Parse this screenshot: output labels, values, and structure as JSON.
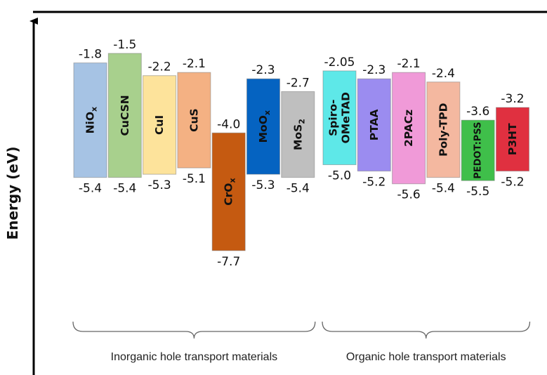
{
  "chart_data": {
    "type": "bar",
    "ylabel": "Energy (eV)",
    "groups": [
      {
        "label": "Inorganic hole transport materials",
        "materials": [
          {
            "name": "NiOx",
            "base": "NiO",
            "sub": "x",
            "top": -1.8,
            "bottom": -5.4,
            "top_label": "-1.8",
            "bottom_label": "-5.4",
            "color": "#a6c3e4"
          },
          {
            "name": "CuCSN",
            "base": "CuCSN",
            "sub": "",
            "top": -1.5,
            "bottom": -5.4,
            "top_label": "-1.5",
            "bottom_label": "-5.4",
            "color": "#a8d08d"
          },
          {
            "name": "CuI",
            "base": "CuI",
            "sub": "",
            "top": -2.2,
            "bottom": -5.3,
            "top_label": "-2.2",
            "bottom_label": "-5.3",
            "color": "#fde39b"
          },
          {
            "name": "CuS",
            "base": "CuS",
            "sub": "",
            "top": -2.1,
            "bottom": -5.1,
            "top_label": "-2.1",
            "bottom_label": "-5.1",
            "color": "#f4b183"
          },
          {
            "name": "CrOx",
            "base": "CrO",
            "sub": "x",
            "top": -4.0,
            "bottom": -7.7,
            "top_label": "-4.0",
            "bottom_label": "-7.7",
            "color": "#c55a11"
          },
          {
            "name": "MoOx",
            "base": "MoO",
            "sub": "x",
            "top": -2.3,
            "bottom": -5.3,
            "top_label": "-2.3",
            "bottom_label": "-5.3",
            "color": "#0563c1"
          },
          {
            "name": "MoS2",
            "base": "MoS",
            "sub": "2",
            "top": -2.7,
            "bottom": -5.4,
            "top_label": "-2.7",
            "bottom_label": "-5.4",
            "color": "#bfbfbf"
          }
        ]
      },
      {
        "label": "Organic hole transport materials",
        "materials": [
          {
            "name": "Spiro-OMeTAD",
            "lines": [
              "Spiro-",
              "OMeTAD"
            ],
            "top": -2.05,
            "bottom": -5.0,
            "top_label": "-2.05",
            "bottom_label": "-5.0",
            "color": "#5ee8e8"
          },
          {
            "name": "PTAA",
            "base": "PTAA",
            "sub": "",
            "top": -2.3,
            "bottom": -5.2,
            "top_label": "-2.3",
            "bottom_label": "-5.2",
            "color": "#9b8cf0"
          },
          {
            "name": "2PACz",
            "base": "2PACz",
            "sub": "",
            "top": -2.1,
            "bottom": -5.6,
            "top_label": "-2.1",
            "bottom_label": "-5.6",
            "color": "#f09ad8"
          },
          {
            "name": "Poly-TPD",
            "base": "Poly-TPD",
            "sub": "",
            "top": -2.4,
            "bottom": -5.4,
            "top_label": "-2.4",
            "bottom_label": "-5.4",
            "color": "#f4b8a0"
          },
          {
            "name": "PEDOT:PSS",
            "base": "PEDOT:PSS",
            "sub": "",
            "small": true,
            "top": -3.6,
            "bottom": -5.5,
            "top_label": "-3.6",
            "bottom_label": "-5.5",
            "color": "#3fbf4a"
          },
          {
            "name": "P3HT",
            "base": "P3HT",
            "sub": "",
            "top": -3.2,
            "bottom": -5.2,
            "top_label": "-3.2",
            "bottom_label": "-5.2",
            "color": "#e03040"
          }
        ]
      }
    ],
    "colors": {
      "axis": "#000000",
      "bracket": "#666666"
    }
  }
}
